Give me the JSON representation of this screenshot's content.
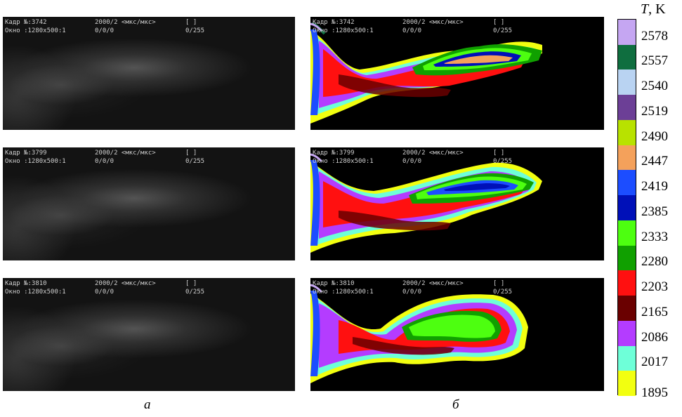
{
  "panels": {
    "left_label": "а",
    "right_label": "б"
  },
  "frames": [
    {
      "frame_text": "Кадр №:3742",
      "rate": "2000/2 <мкс/мкс>",
      "brackets": "[ ]",
      "window": "Окно   :1280x500:1",
      "offset": "0/0/0",
      "range": "0/255"
    },
    {
      "frame_text": "Кадр №:3799",
      "rate": "2000/2 <мкс/мкс>",
      "brackets": "[ ]",
      "window": "Окно   :1280x500:1",
      "offset": "0/0/0",
      "range": "0/255"
    },
    {
      "frame_text": "Кадр №:3810",
      "rate": "2000/2 <мкс/мкс>",
      "brackets": "[ ]",
      "window": "Окно   :1280x500:1",
      "offset": "0/0/0",
      "range": "0/255"
    }
  ],
  "colorbar": {
    "title_var": "T",
    "title_unit": ", K",
    "ticks": [
      "2578",
      "2557",
      "2540",
      "2519",
      "2490",
      "2447",
      "2419",
      "2385",
      "2333",
      "2280",
      "2203",
      "2165",
      "2086",
      "2017",
      "1895"
    ],
    "colors": [
      "#c5a6f2",
      "#0f6e3f",
      "#b9d3f2",
      "#6c3f96",
      "#b8e200",
      "#f4a15b",
      "#1c4dff",
      "#0010b8",
      "#4dff10",
      "#10a000",
      "#ff1010",
      "#6a0000",
      "#b43cff",
      "#6effd8",
      "#f2ff10"
    ]
  }
}
